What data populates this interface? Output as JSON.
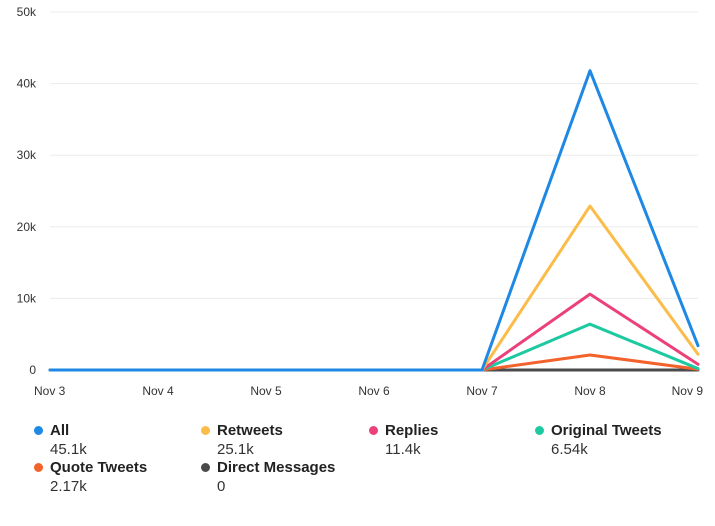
{
  "chart_data": {
    "type": "line",
    "categories": [
      "Nov 3",
      "Nov 4",
      "Nov 5",
      "Nov 6",
      "Nov 7",
      "Nov 8",
      "Nov 9"
    ],
    "ylim": [
      0,
      50000
    ],
    "yticks": [
      0,
      10000,
      20000,
      30000,
      40000,
      50000
    ],
    "ytick_labels": [
      "0",
      "10k",
      "20k",
      "30k",
      "40k",
      "50k"
    ],
    "grid": "horizontal",
    "legend_placement": "bottom",
    "series": [
      {
        "name": "All",
        "total": "45.1k",
        "color": "#1E88E5",
        "values": [
          0,
          0,
          0,
          0,
          0,
          41800,
          3400
        ]
      },
      {
        "name": "Retweets",
        "total": "25.1k",
        "color": "#FBBC4A",
        "values": [
          0,
          0,
          0,
          0,
          0,
          22900,
          2200
        ]
      },
      {
        "name": "Replies",
        "total": "11.4k",
        "color": "#EC407A",
        "values": [
          0,
          0,
          0,
          0,
          0,
          10600,
          800
        ]
      },
      {
        "name": "Original Tweets",
        "total": "6.54k",
        "color": "#1DC9A0",
        "values": [
          0,
          0,
          0,
          0,
          0,
          6400,
          200
        ]
      },
      {
        "name": "Quote Tweets",
        "total": "2.17k",
        "color": "#F4622C",
        "values": [
          0,
          0,
          0,
          0,
          0,
          2100,
          100
        ]
      },
      {
        "name": "Direct Messages",
        "total": "0",
        "color": "#4A4A4A",
        "values": [
          0,
          0,
          0,
          0,
          0,
          0,
          0
        ]
      }
    ]
  }
}
